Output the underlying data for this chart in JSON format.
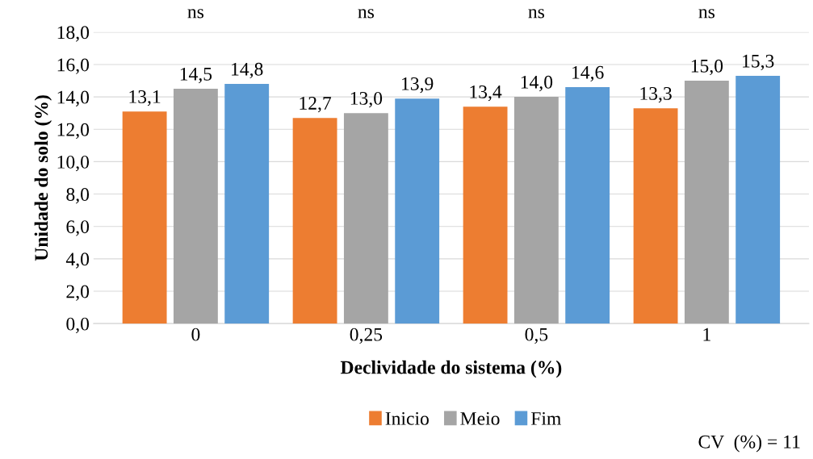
{
  "chart_data": {
    "type": "bar",
    "xlabel": "Declividade do sistema (%)",
    "ylabel": "Unidade do solo (%)",
    "categories": [
      "0",
      "0,25",
      "0,5",
      "1"
    ],
    "series": [
      {
        "name": "Inicio",
        "color": "#ed7d31",
        "values": [
          13.1,
          12.7,
          13.4,
          13.3
        ],
        "value_labels": [
          "13,1",
          "12,7",
          "13,4",
          "13,3"
        ]
      },
      {
        "name": "Meio",
        "color": "#a5a5a5",
        "values": [
          14.5,
          13.0,
          14.0,
          15.0
        ],
        "value_labels": [
          "14,5",
          "13,0",
          "14,0",
          "15,0"
        ]
      },
      {
        "name": "Fim",
        "color": "#5b9bd5",
        "values": [
          14.8,
          13.9,
          14.6,
          15.3
        ],
        "value_labels": [
          "14,8",
          "13,9",
          "14,6",
          "15,3"
        ]
      }
    ],
    "ylim": [
      0,
      18
    ],
    "yticks": [
      {
        "value": 0,
        "label": "0,0"
      },
      {
        "value": 2,
        "label": "2,0"
      },
      {
        "value": 4,
        "label": "4,0"
      },
      {
        "value": 6,
        "label": "6,0"
      },
      {
        "value": 8,
        "label": "8,0"
      },
      {
        "value": 10,
        "label": "10,0"
      },
      {
        "value": 12,
        "label": "12,0"
      },
      {
        "value": 14,
        "label": "14,0"
      },
      {
        "value": 16,
        "label": "16,0"
      },
      {
        "value": 18,
        "label": "18,0"
      }
    ],
    "grid": "y",
    "legend": "bottom",
    "annotations": [
      "ns",
      "ns",
      "ns",
      "ns",
      "CV  (%) = 11"
    ]
  }
}
